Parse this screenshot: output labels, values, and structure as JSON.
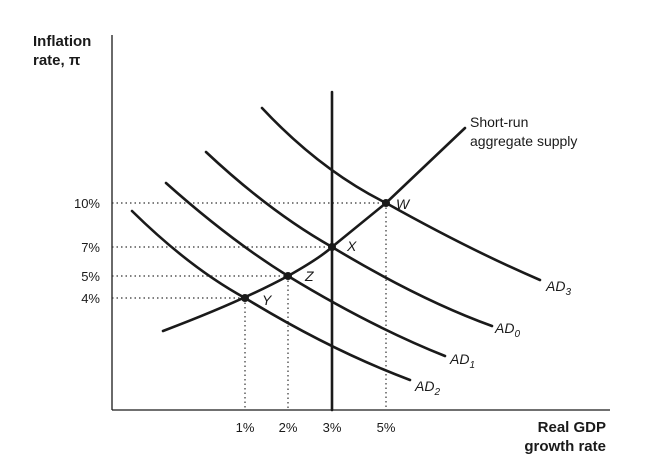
{
  "axes": {
    "y_title_line1": "Inflation",
    "y_title_line2": "rate, π",
    "x_title_line1": "Real GDP",
    "x_title_line2": "growth rate"
  },
  "y_ticks": [
    "10%",
    "7%",
    "5%",
    "4%"
  ],
  "x_ticks": [
    "1%",
    "2%",
    "3%",
    "5%"
  ],
  "points": {
    "W": "W",
    "X": "X",
    "Z": "Z",
    "Y": "Y"
  },
  "curves": {
    "srAS_line1": "Short-run",
    "srAS_line2": "aggregate supply",
    "ad3_main": "AD",
    "ad3_sub": "3",
    "ad0_main": "AD",
    "ad0_sub": "0",
    "ad1_main": "AD",
    "ad1_sub": "1",
    "ad2_main": "AD",
    "ad2_sub": "2"
  }
}
